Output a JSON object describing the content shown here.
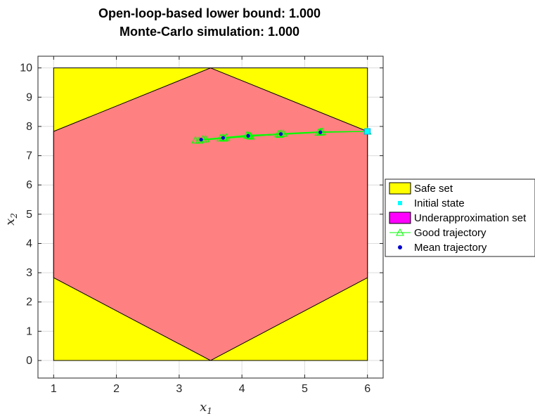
{
  "chart_data": {
    "type": "scatter",
    "title_lines": [
      "Open-loop-based lower bound: 1.000",
      "Monte-Carlo simulation: 1.000"
    ],
    "xlabel": "x",
    "xlabel_sub": "1",
    "ylabel": "x",
    "ylabel_sub": "2",
    "xlim": [
      0.75,
      6.25
    ],
    "ylim": [
      -0.6,
      10.4
    ],
    "xticks": [
      1,
      2,
      3,
      4,
      5,
      6
    ],
    "yticks": [
      0,
      1,
      2,
      3,
      4,
      5,
      6,
      7,
      8,
      9,
      10
    ],
    "grid": true,
    "legend_position": "east-outside",
    "safe_set": {
      "color": "#ffff00",
      "vertices": [
        [
          1,
          0
        ],
        [
          6,
          0
        ],
        [
          6,
          10
        ],
        [
          1,
          10
        ]
      ]
    },
    "underapproximation_set": {
      "color": "#ff8080",
      "vertices": [
        [
          3.5,
          0
        ],
        [
          6,
          2.83
        ],
        [
          6,
          7.83
        ],
        [
          3.5,
          10
        ],
        [
          1,
          7.83
        ],
        [
          1,
          2.83
        ]
      ]
    },
    "initial_state": {
      "color": "#00ffff",
      "x": 6.0,
      "y": 7.83
    },
    "good_trajectories": {
      "color": "#00ff00",
      "lines": [
        {
          "x": [
            6.0,
            5.25,
            4.62,
            4.1,
            3.7,
            3.38
          ],
          "y": [
            7.83,
            7.81,
            7.75,
            7.69,
            7.62,
            7.56
          ]
        },
        {
          "x": [
            6.0,
            5.22,
            4.6,
            4.14,
            3.72,
            3.32
          ],
          "y": [
            7.83,
            7.79,
            7.72,
            7.66,
            7.59,
            7.52
          ]
        },
        {
          "x": [
            6.0,
            5.28,
            4.66,
            4.12,
            3.66,
            3.26
          ],
          "y": [
            7.83,
            7.82,
            7.76,
            7.68,
            7.6,
            7.53
          ]
        },
        {
          "x": [
            6.0,
            5.26,
            4.58,
            4.08,
            3.75,
            3.42
          ],
          "y": [
            7.83,
            7.8,
            7.74,
            7.7,
            7.63,
            7.57
          ]
        }
      ]
    },
    "mean_trajectory": {
      "color": "#0000cc",
      "x": [
        6.0,
        5.25,
        4.62,
        4.1,
        3.7,
        3.35
      ],
      "y": [
        7.83,
        7.8,
        7.74,
        7.68,
        7.61,
        7.55
      ]
    },
    "legend": [
      {
        "label": "Safe set",
        "kind": "patch",
        "color": "#ffff00"
      },
      {
        "label": "Initial state",
        "kind": "square",
        "color": "#00ffff"
      },
      {
        "label": "Underapproximation set",
        "kind": "patch",
        "color": "#ff00ff"
      },
      {
        "label": "Good trajectory",
        "kind": "triangle-line",
        "color": "#00ff00"
      },
      {
        "label": "Mean trajectory",
        "kind": "dot",
        "color": "#0000cc"
      }
    ]
  }
}
